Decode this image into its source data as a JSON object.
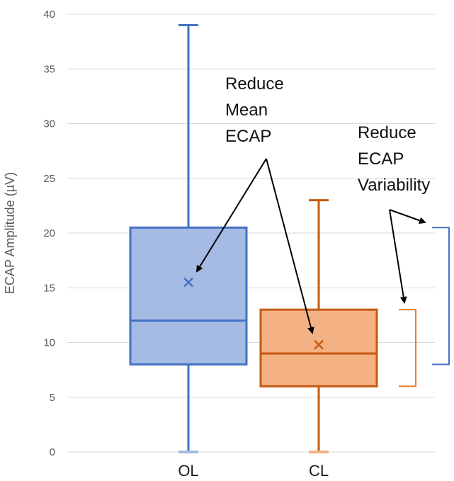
{
  "chart_data": {
    "type": "box",
    "ylabel": "ECAP Amplitude (µV)",
    "ylim": [
      0,
      40
    ],
    "yticks": [
      0,
      5,
      10,
      15,
      20,
      25,
      30,
      35,
      40
    ],
    "categories": [
      "OL",
      "CL"
    ],
    "grid": true,
    "series": [
      {
        "category": "OL",
        "min": 0,
        "q1": 8,
        "median": 12,
        "q3": 20.5,
        "max": 39,
        "mean": 15.5,
        "color": "#4472C4",
        "fill": "#A5BBE3"
      },
      {
        "category": "CL",
        "min": 0,
        "q1": 6,
        "median": 9,
        "q3": 13,
        "max": 23,
        "mean": 9.8,
        "color": "#C55A11",
        "fill": "#F4B183"
      }
    ],
    "annotations": [
      {
        "lines": [
          "Reduce",
          "Mean",
          "ECAP"
        ]
      },
      {
        "lines": [
          "Reduce",
          "ECAP",
          "Variability"
        ]
      }
    ],
    "brackets": [
      {
        "category": "OL",
        "from": 8,
        "to": 20.5,
        "color": "#4472C4"
      },
      {
        "category": "CL",
        "from": 6,
        "to": 13,
        "color": "#ED7D31"
      }
    ]
  }
}
